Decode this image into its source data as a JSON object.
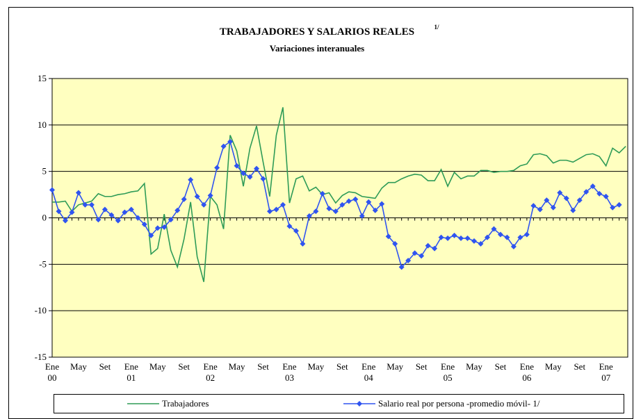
{
  "chart_data": {
    "type": "line",
    "title": "TRABAJADORES  Y SALARIOS REALES",
    "title_note": "1/",
    "subtitle": "Variaciones interanuales",
    "categories": [
      "Ene 00",
      null,
      null,
      null,
      "May",
      null,
      null,
      null,
      "Set",
      null,
      null,
      null,
      "Ene 01",
      null,
      null,
      null,
      "May",
      null,
      null,
      null,
      "Set",
      null,
      null,
      null,
      "Ene 02",
      null,
      null,
      null,
      "May",
      null,
      null,
      null,
      "Set",
      null,
      null,
      null,
      "Ene 03",
      null,
      null,
      null,
      "May",
      null,
      null,
      null,
      "Set",
      null,
      null,
      null,
      "Ene 04",
      null,
      null,
      null,
      "May",
      null,
      null,
      null,
      "Set",
      null,
      null,
      null,
      "Ene 05",
      null,
      null,
      null,
      "May",
      null,
      null,
      null,
      "Set",
      null,
      null,
      null,
      "Ene 06",
      null,
      null,
      null,
      "May",
      null,
      null,
      null,
      "Set",
      null,
      null,
      null,
      "Ene 07",
      null,
      null,
      null
    ],
    "series": [
      {
        "name": "Trabajadores",
        "color": "#2e9b57",
        "marker": false,
        "values": [
          1.7,
          1.7,
          1.8,
          0.7,
          1.4,
          1.6,
          1.8,
          2.6,
          2.3,
          2.3,
          2.5,
          2.6,
          2.8,
          2.9,
          3.7,
          -3.9,
          -3.3,
          0.4,
          -3.5,
          -5.3,
          -2.3,
          1.7,
          -4.2,
          -6.9,
          2.3,
          1.4,
          -1.2,
          8.9,
          7.2,
          3.4,
          7.5,
          9.9,
          6.0,
          2.3,
          8.9,
          11.9,
          1.6,
          4.2,
          4.5,
          2.9,
          3.3,
          2.5,
          2.7,
          1.6,
          2.4,
          2.8,
          2.7,
          2.3,
          2.2,
          2.1,
          3.2,
          3.8,
          3.8,
          4.2,
          4.5,
          4.7,
          4.6,
          4.0,
          4.0,
          5.2,
          3.4,
          4.9,
          4.2,
          4.5,
          4.5,
          5.1,
          5.1,
          4.9,
          5.0,
          5.0,
          5.1,
          5.6,
          5.8,
          6.8,
          6.9,
          6.7,
          5.9,
          6.2,
          6.2,
          6.0,
          6.4,
          6.8,
          6.9,
          6.6,
          5.6,
          7.5,
          7.0,
          7.7
        ]
      },
      {
        "name": "Salario real por persona -promedio móvil- 1/",
        "color": "#2f54f0",
        "marker": true,
        "values": [
          3.0,
          0.7,
          -0.3,
          0.6,
          2.7,
          1.4,
          1.4,
          -0.2,
          0.9,
          0.3,
          -0.3,
          0.6,
          0.9,
          0.0,
          -0.7,
          -1.9,
          -1.1,
          -1.0,
          -0.2,
          0.8,
          2.0,
          4.1,
          2.3,
          1.4,
          2.4,
          5.4,
          7.7,
          8.2,
          5.6,
          4.8,
          4.4,
          5.3,
          4.2,
          0.7,
          0.9,
          1.4,
          -0.9,
          -1.4,
          -2.8,
          0.2,
          0.7,
          2.6,
          1.0,
          0.7,
          1.4,
          1.8,
          2.0,
          0.2,
          1.7,
          0.8,
          1.5,
          -2.0,
          -2.8,
          -5.3,
          -4.6,
          -3.8,
          -4.1,
          -3.0,
          -3.3,
          -2.1,
          -2.2,
          -1.9,
          -2.2,
          -2.2,
          -2.5,
          -2.8,
          -2.1,
          -1.2,
          -1.8,
          -2.1,
          -3.1,
          -2.1,
          -1.8,
          1.3,
          0.9,
          1.9,
          1.1,
          2.7,
          2.1,
          0.8,
          1.9,
          2.8,
          3.4,
          2.6,
          2.3,
          1.1,
          1.4,
          null
        ]
      }
    ],
    "ylim": [
      -15,
      15
    ],
    "yticks": [
      -15,
      -10,
      -5,
      0,
      5,
      10,
      15
    ],
    "grid": true,
    "plot_background": "#ffffc0"
  }
}
